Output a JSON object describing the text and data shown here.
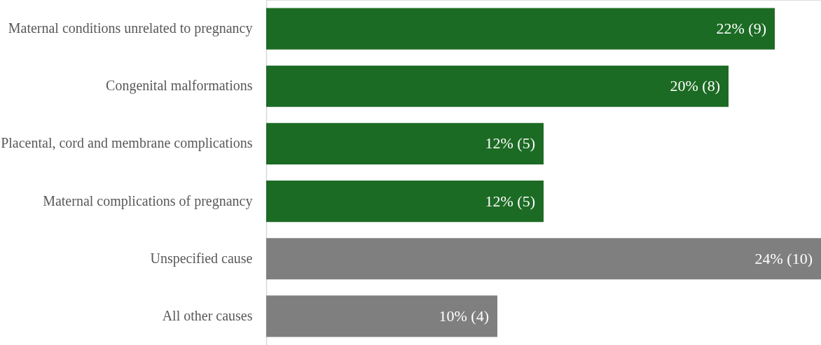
{
  "chart_data": {
    "type": "bar",
    "orientation": "horizontal",
    "categories": [
      "Maternal conditions unrelated to pregnancy",
      "Congenital malformations",
      "Placental, cord and membrane complications",
      "Maternal complications of pregnancy",
      "Unspecified cause",
      "All other causes"
    ],
    "values": [
      22,
      20,
      12,
      12,
      24,
      10
    ],
    "colors": [
      "#1c6b24",
      "#1c6b24",
      "#1c6b24",
      "#1c6b24",
      "#7f7f7f",
      "#7f7f7f"
    ],
    "value_labels": [
      "22% (9)",
      "20% (8)",
      "12% (5)",
      "12% (5)",
      "24% (10)",
      "10% (4)"
    ]
  }
}
